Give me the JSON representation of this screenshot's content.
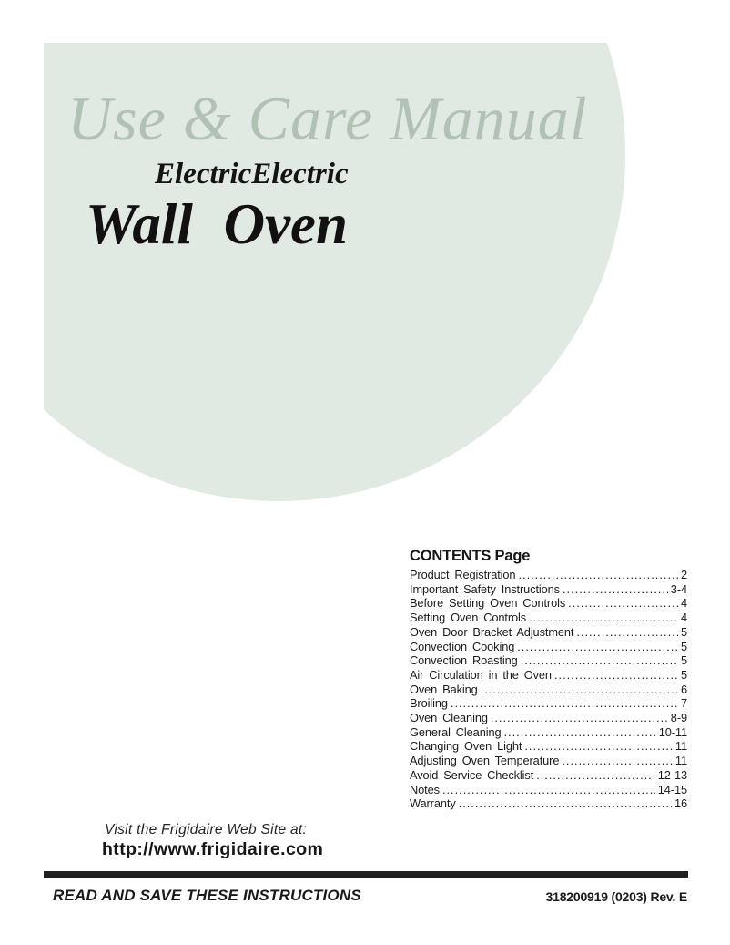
{
  "header": {
    "title": "Use & Care Manual",
    "subtitle": "ElectricElectric",
    "product": "Wall Oven"
  },
  "colors": {
    "circle_background": "#e0e9e2",
    "title_text": "#b1c2b5",
    "body_text": "#1c1a1a",
    "rule": "#221f1f"
  },
  "contents": {
    "header": "CONTENTS Page",
    "entries": [
      {
        "label": "Product Registration",
        "page": "2"
      },
      {
        "label": "Important Safety Instructions",
        "page": "3-4"
      },
      {
        "label": "Before Setting Oven Controls",
        "page": "4"
      },
      {
        "label": "Setting Oven Controls",
        "page": "4"
      },
      {
        "label": "Oven Door Bracket Adjustment",
        "page": "5"
      },
      {
        "label": "Convection Cooking",
        "page": "5"
      },
      {
        "label": "Convection Roasting",
        "page": "5"
      },
      {
        "label": "Air Circulation in the Oven",
        "page": "5"
      },
      {
        "label": "Oven Baking",
        "page": "6"
      },
      {
        "label": "Broiling",
        "page": "7"
      },
      {
        "label": "Oven Cleaning",
        "page": "8-9"
      },
      {
        "label": "General Cleaning",
        "page": "10-11"
      },
      {
        "label": "Changing Oven Light",
        "page": "11"
      },
      {
        "label": "Adjusting Oven Temperature",
        "page": "11"
      },
      {
        "label": "Avoid Service Checklist",
        "page": "12-13"
      },
      {
        "label": "Notes",
        "page": "14-15"
      },
      {
        "label": "Warranty",
        "page": "16"
      }
    ]
  },
  "footer": {
    "website_intro": "Visit the Frigidaire Web Site at:",
    "website_url": "http://www.frigidaire.com",
    "instruction": "READ AND SAVE THESE INSTRUCTIONS",
    "part_number": "318200919 (0203) Rev. E"
  }
}
